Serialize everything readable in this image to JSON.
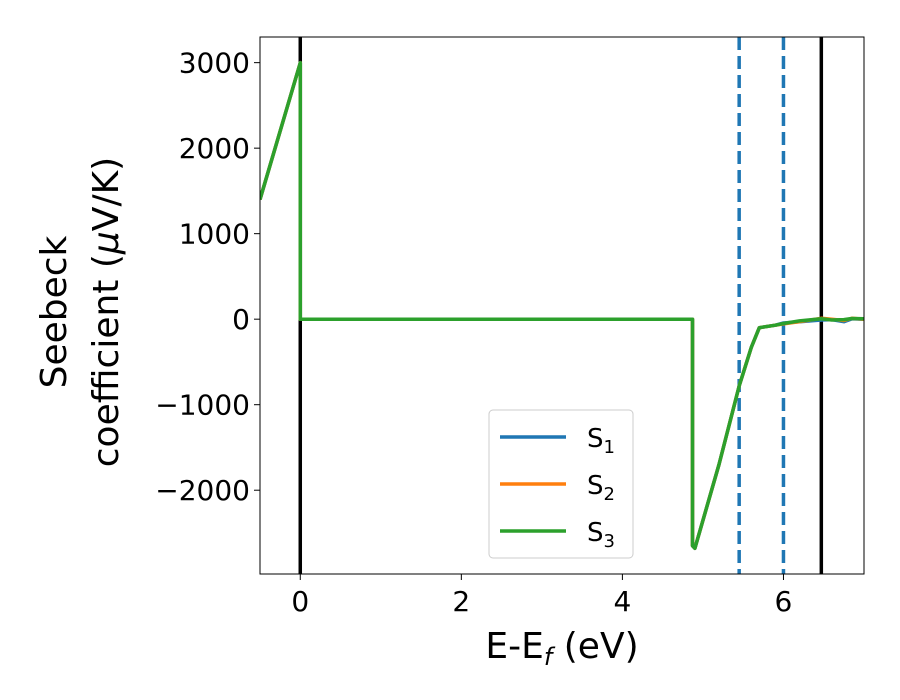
{
  "chart_data": {
    "type": "line",
    "xlabel": {
      "main": "E-E",
      "sub": "f",
      "unit": " (eV)"
    },
    "ylabel": {
      "line1": "Seebeck",
      "line2": "coefficient  (",
      "mu": "μ",
      "line2_end": "V/K)"
    },
    "xlim": [
      -0.5,
      7.0
    ],
    "ylim": [
      -2980,
      3300
    ],
    "xticks": [
      0,
      2,
      4,
      6
    ],
    "xtick_labels": [
      "0",
      "2",
      "4",
      "6"
    ],
    "yticks": [
      3000,
      2000,
      1000,
      0,
      -1000,
      -2000
    ],
    "ytick_labels": [
      "3000",
      "2000",
      "1000",
      "0",
      "−1000",
      "−2000"
    ],
    "grid": false,
    "legend_position": "lower-center",
    "vlines": [
      {
        "x": 0.0,
        "style": "solid",
        "color": "#000000"
      },
      {
        "x": 6.47,
        "style": "solid",
        "color": "#000000"
      },
      {
        "x": 5.45,
        "style": "dashed",
        "color": "#1f77b4"
      },
      {
        "x": 6.0,
        "style": "dashed",
        "color": "#1f77b4"
      }
    ],
    "series": [
      {
        "name": "S",
        "sub": "1",
        "color": "#1f77b4",
        "x": [
          -0.5,
          0.0,
          0.0,
          4.87,
          4.87,
          4.9,
          5.2,
          5.45,
          5.6,
          5.7,
          5.9,
          6.0,
          6.2,
          6.47,
          6.6,
          6.75,
          6.85,
          7.0
        ],
        "y": [
          1400,
          3000,
          0,
          0,
          -2650,
          -2680,
          -1700,
          -780,
          -330,
          -100,
          -70,
          -45,
          -30,
          -10,
          -5,
          -30,
          5,
          0
        ]
      },
      {
        "name": "S",
        "sub": "2",
        "color": "#ff7f0e",
        "x": [
          -0.5,
          0.0,
          0.0,
          4.87,
          4.87,
          4.9,
          5.2,
          5.45,
          5.6,
          5.7,
          5.9,
          6.0,
          6.2,
          6.47,
          6.6,
          6.75,
          6.85,
          7.0
        ],
        "y": [
          1400,
          3000,
          0,
          0,
          -2650,
          -2680,
          -1700,
          -780,
          -330,
          -100,
          -70,
          -55,
          -30,
          10,
          0,
          -15,
          10,
          0
        ]
      },
      {
        "name": "S",
        "sub": "3",
        "color": "#2ca02c",
        "x": [
          -0.5,
          0.0,
          0.0,
          4.87,
          4.87,
          4.9,
          5.2,
          5.45,
          5.6,
          5.7,
          5.9,
          6.0,
          6.2,
          6.47,
          6.6,
          6.75,
          6.85,
          7.0
        ],
        "y": [
          1400,
          3000,
          0,
          0,
          -2650,
          -2680,
          -1700,
          -780,
          -330,
          -100,
          -70,
          -50,
          -20,
          5,
          -10,
          -5,
          8,
          5
        ]
      }
    ]
  }
}
